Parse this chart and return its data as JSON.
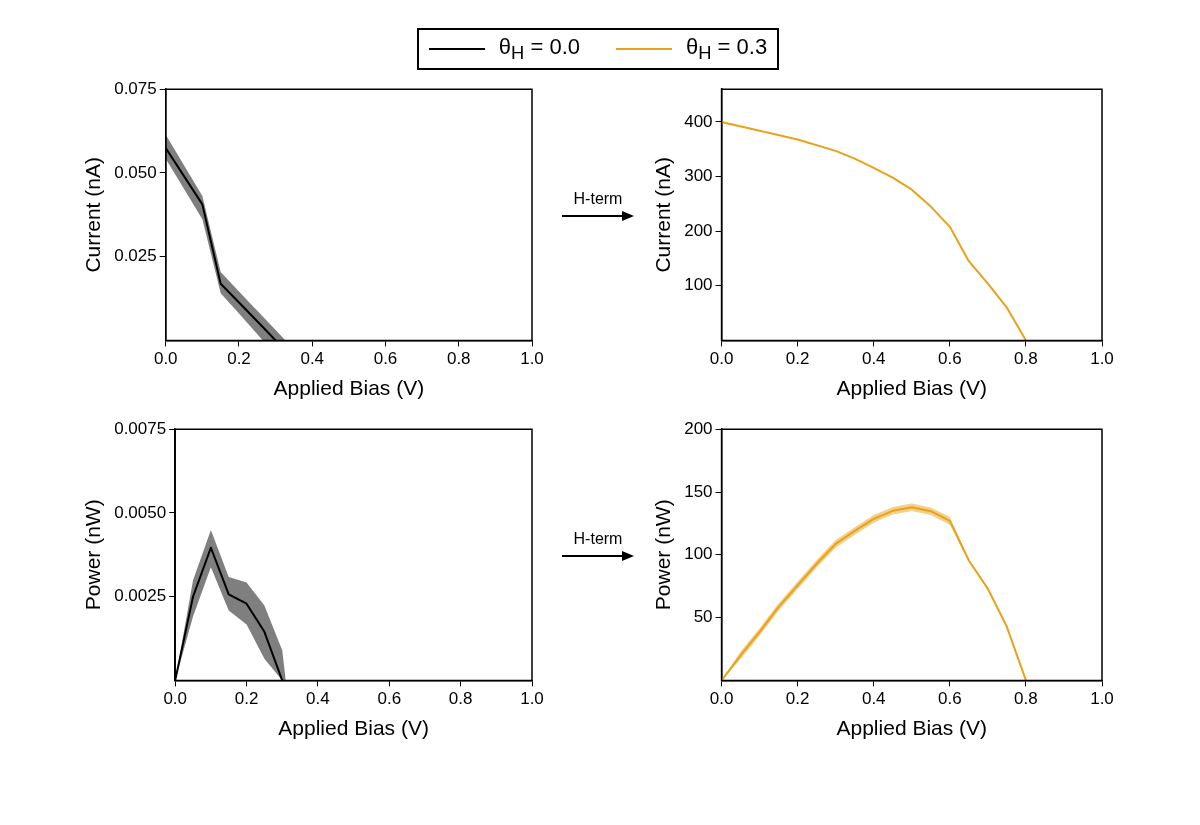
{
  "chart_data": [
    {
      "type": "line",
      "xlabel": "Applied Bias (V)",
      "ylabel": "Current (nA)",
      "xlim": [
        0,
        1
      ],
      "xticks": [
        {
          "value": 0,
          "label": "0.0"
        },
        {
          "value": 0.2,
          "label": "0.2"
        },
        {
          "value": 0.4,
          "label": "0.4"
        },
        {
          "value": 0.6,
          "label": "0.6"
        },
        {
          "value": 0.8,
          "label": "0.8"
        },
        {
          "value": 1,
          "label": "1.0"
        }
      ],
      "ylim": [
        0,
        0.075
      ],
      "yticks": [
        0.025,
        {
          "value": 0.05,
          "label": "0.050"
        },
        0.075
      ],
      "legend": "top",
      "annotations": [
        "H-term"
      ],
      "series": [
        {
          "name": "θ$_{H}$ = 0.0",
          "color": "#000000",
          "x": [
            0,
            0.1,
            0.15,
            0.2,
            0.265,
            0.3,
            0.327
          ],
          "values": [
            0.0574,
            0.0406,
            0.0169,
            0.0113,
            0.004,
            0,
            null
          ],
          "upper": [
            0.0614,
            0.0431,
            0.0204,
            0.0146,
            0.0071,
            0.0031,
            0
          ],
          "lower": [
            0.0542,
            0.0362,
            0.0141,
            0.008,
            0,
            0,
            0
          ]
        }
      ]
    },
    {
      "type": "line",
      "xlabel": "Applied Bias (V)",
      "ylabel": "Current (nA)",
      "xlim": [
        0,
        1
      ],
      "xticks": [
        {
          "value": 0,
          "label": "0.0"
        },
        {
          "value": 0.2,
          "label": "0.2"
        },
        {
          "value": 0.4,
          "label": "0.4"
        },
        {
          "value": 0.6,
          "label": "0.6"
        },
        {
          "value": 0.8,
          "label": "0.8"
        },
        {
          "value": 1,
          "label": "1.0"
        }
      ],
      "ylim": [
        0,
        460
      ],
      "yticks": [
        100,
        200,
        300,
        400
      ],
      "legend": "top",
      "series": [
        {
          "name": "θ$_{H}$ = 0.3",
          "color": "#e8a21a",
          "x": [
            0,
            0.1,
            0.2,
            0.3,
            0.35,
            0.4,
            0.45,
            0.5,
            0.55,
            0.6,
            0.65,
            0.7,
            0.75,
            0.8
          ],
          "values": [
            400,
            384,
            368,
            347,
            333,
            316,
            298,
            276,
            245,
            208,
            145,
            104,
            60,
            0
          ]
        }
      ]
    },
    {
      "type": "line",
      "xlabel": "Applied Bias (V)",
      "ylabel": "Power (nW)",
      "xlim": [
        0,
        1
      ],
      "xticks": [
        {
          "value": 0,
          "label": "0.0"
        },
        {
          "value": 0.2,
          "label": "0.2"
        },
        {
          "value": 0.4,
          "label": "0.4"
        },
        {
          "value": 0.6,
          "label": "0.6"
        },
        {
          "value": 0.8,
          "label": "0.8"
        },
        {
          "value": 1,
          "label": "1.0"
        }
      ],
      "ylim": [
        0,
        0.0075
      ],
      "yticks": [
        {
          "value": 0.0025,
          "label": "0.0025"
        },
        {
          "value": 0.005,
          "label": "0.0050"
        },
        0.0075
      ],
      "annotations": [
        "H-term"
      ],
      "series": [
        {
          "color": "#000000",
          "x": [
            0,
            0.05,
            0.1,
            0.15,
            0.2,
            0.25,
            0.3,
            0.31
          ],
          "values": [
            0,
            0.0025,
            0.00396,
            0.00257,
            0.00229,
            0.00145,
            0,
            null
          ],
          "upper": [
            0,
            0.00299,
            0.00449,
            0.00309,
            0.00292,
            0.00224,
            0.0009,
            0
          ],
          "lower": [
            0,
            0.00191,
            0.00338,
            0.00209,
            0.00167,
            0.00065,
            0,
            0
          ]
        }
      ]
    },
    {
      "type": "line",
      "xlabel": "Applied Bias (V)",
      "ylabel": "Power (nW)",
      "xlim": [
        0,
        1
      ],
      "xticks": [
        {
          "value": 0,
          "label": "0.0"
        },
        {
          "value": 0.2,
          "label": "0.2"
        },
        {
          "value": 0.4,
          "label": "0.4"
        },
        {
          "value": 0.6,
          "label": "0.6"
        },
        {
          "value": 0.8,
          "label": "0.8"
        },
        {
          "value": 1,
          "label": "1.0"
        }
      ],
      "ylim": [
        0,
        200
      ],
      "yticks": [
        50,
        100,
        150,
        200
      ],
      "series": [
        {
          "color": "#e8a21a",
          "x": [
            0,
            0.05,
            0.1,
            0.15,
            0.2,
            0.25,
            0.3,
            0.35,
            0.4,
            0.45,
            0.5,
            0.55,
            0.6,
            0.65,
            0.7,
            0.75,
            0.8
          ],
          "values": [
            0,
            20,
            38.6,
            58.5,
            75.7,
            92.9,
            108.7,
            119,
            128.6,
            135,
            137.8,
            134.7,
            127,
            95.5,
            73,
            42.6,
            0
          ],
          "upper": [
            0,
            23,
            41.6,
            61.5,
            78.7,
            95.9,
            111.7,
            122,
            131.6,
            138,
            140.8,
            137.7,
            130,
            96.5,
            74,
            43.6,
            0
          ],
          "lower": [
            0,
            17,
            35.6,
            55.5,
            72.7,
            89.9,
            105.7,
            116,
            125.6,
            132,
            134.8,
            131.7,
            124,
            94.5,
            72,
            41.6,
            0
          ]
        }
      ]
    }
  ]
}
